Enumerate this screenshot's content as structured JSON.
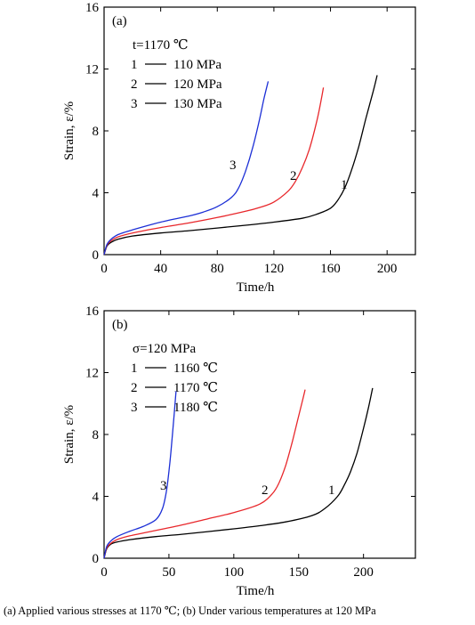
{
  "caption": "(a) Applied various stresses at 1170 ℃; (b) Under various temperatures at 120 MPa",
  "chart_data": [
    {
      "type": "line",
      "panel": "(a)",
      "xlabel": "Time/h",
      "ylabel": "Strain, ε/%",
      "xlim": [
        0,
        220
      ],
      "ylim": [
        0,
        16
      ],
      "xticks": [
        0,
        40,
        80,
        120,
        160,
        200
      ],
      "yticks": [
        0,
        4,
        8,
        12,
        16
      ],
      "grid": false,
      "legend_position": "top-left",
      "legend_title": "t=1170 ℃",
      "series": [
        {
          "name": "110 MPa",
          "label": "1",
          "color": "#000000",
          "x": [
            0,
            2,
            5,
            10,
            20,
            40,
            60,
            80,
            100,
            120,
            140,
            150,
            160,
            165,
            170,
            175,
            180,
            185,
            190,
            193
          ],
          "y": [
            0,
            0.55,
            0.8,
            1.0,
            1.2,
            1.4,
            1.55,
            1.72,
            1.9,
            2.1,
            2.35,
            2.6,
            3.0,
            3.5,
            4.3,
            5.5,
            7.0,
            8.8,
            10.5,
            11.6
          ]
        },
        {
          "name": "120 MPa",
          "label": "2",
          "color": "#e8272b",
          "x": [
            0,
            2,
            5,
            10,
            20,
            40,
            60,
            80,
            100,
            110,
            120,
            130,
            135,
            140,
            145,
            150,
            153,
            155
          ],
          "y": [
            0,
            0.6,
            0.9,
            1.15,
            1.4,
            1.75,
            2.05,
            2.4,
            2.8,
            3.05,
            3.4,
            4.1,
            4.7,
            5.6,
            6.8,
            8.5,
            9.8,
            10.8
          ]
        },
        {
          "name": "130 MPa",
          "label": "3",
          "color": "#1c2fd6",
          "x": [
            0,
            2,
            5,
            10,
            20,
            40,
            60,
            70,
            80,
            90,
            95,
            100,
            105,
            110,
            113,
            116
          ],
          "y": [
            0,
            0.65,
            1.0,
            1.3,
            1.6,
            2.1,
            2.5,
            2.75,
            3.1,
            3.7,
            4.3,
            5.4,
            6.9,
            8.8,
            10.1,
            11.2
          ]
        }
      ]
    },
    {
      "type": "line",
      "panel": "(b)",
      "xlabel": "Time/h",
      "ylabel": "Strain, ε/%",
      "xlim": [
        0,
        240
      ],
      "ylim": [
        0,
        16
      ],
      "xticks": [
        0,
        50,
        100,
        150,
        200
      ],
      "yticks": [
        0,
        4,
        8,
        12,
        16
      ],
      "grid": false,
      "legend_position": "top-left",
      "legend_title": "σ=120 MPa",
      "series": [
        {
          "name": "1160 ℃",
          "label": "1",
          "color": "#000000",
          "x": [
            0,
            2,
            5,
            10,
            20,
            40,
            60,
            80,
            100,
            120,
            140,
            160,
            170,
            180,
            185,
            190,
            195,
            200,
            204,
            207
          ],
          "y": [
            0,
            0.6,
            0.9,
            1.05,
            1.2,
            1.4,
            1.55,
            1.72,
            1.9,
            2.1,
            2.35,
            2.75,
            3.2,
            4.0,
            4.7,
            5.6,
            6.8,
            8.4,
            9.8,
            11.0
          ]
        },
        {
          "name": "1170 ℃",
          "label": "2",
          "color": "#e8272b",
          "x": [
            0,
            2,
            5,
            10,
            20,
            40,
            60,
            80,
            100,
            120,
            130,
            135,
            140,
            145,
            150,
            153,
            155
          ],
          "y": [
            0,
            0.65,
            0.95,
            1.2,
            1.45,
            1.8,
            2.15,
            2.55,
            2.95,
            3.5,
            4.2,
            4.9,
            6.0,
            7.5,
            9.2,
            10.2,
            10.9
          ]
        },
        {
          "name": "1180 ℃",
          "label": "3",
          "color": "#1c2fd6",
          "x": [
            0,
            2,
            5,
            10,
            20,
            30,
            40,
            45,
            48,
            50,
            52,
            54,
            55.5
          ],
          "y": [
            0,
            0.75,
            1.1,
            1.4,
            1.75,
            2.05,
            2.5,
            3.2,
            4.3,
            5.6,
            7.3,
            9.3,
            10.8
          ]
        }
      ]
    }
  ]
}
